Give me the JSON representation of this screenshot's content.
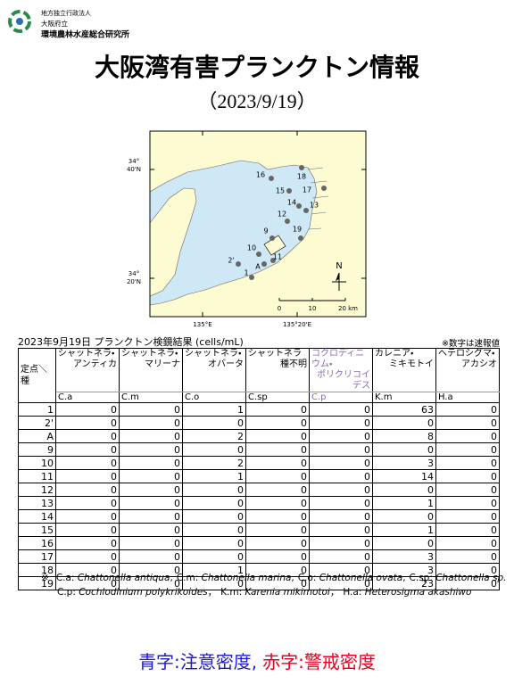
{
  "header": {
    "org_lines": [
      "地方独立行政法人",
      "大阪府立",
      "環境農林水産総合研究所"
    ],
    "title": "大阪湾有害プランクトン情報",
    "date": "（2023/9/19）"
  },
  "map": {
    "lat_labels": [
      {
        "deg": "34°",
        "min": "40'N"
      },
      {
        "deg": "34°",
        "min": "20'N"
      }
    ],
    "lon_labels": [
      "135°E",
      "135°20'E"
    ],
    "stations": [
      "16",
      "18",
      "15",
      "17",
      "14",
      "13",
      "12",
      "9",
      "19",
      "10",
      "11",
      "A",
      "2'",
      "1"
    ],
    "scale": [
      "0",
      "10",
      "20 km"
    ],
    "north": "N"
  },
  "table": {
    "caption": "2023年9月19日 プランクトン検鏡結果",
    "unit": "(cells/mL)",
    "note": "※数字は速報値",
    "corner": "定点＼種",
    "columns": [
      {
        "name": [
          "シャットネラ・",
          "アンティカ"
        ],
        "code": "C.a"
      },
      {
        "name": [
          "シャットネラ・",
          "マリーナ"
        ],
        "code": "C.m"
      },
      {
        "name": [
          "シャットネラ・",
          "オバータ"
        ],
        "code": "C.o"
      },
      {
        "name": [
          "シャットネラ",
          "種不明"
        ],
        "code": "C.sp"
      },
      {
        "name": [
          "コクロディニウム・",
          "ポリクリコイデス"
        ],
        "code": "C.p",
        "color": "#8a6aa8"
      },
      {
        "name": [
          "カレニア・",
          "ミキモトイ"
        ],
        "code": "K.m"
      },
      {
        "name": [
          "ヘテロシグマ・",
          "アカシオ"
        ],
        "code": "H.a"
      }
    ],
    "rows": [
      {
        "station": "1",
        "values": [
          0,
          0,
          1,
          0,
          0,
          63,
          0
        ]
      },
      {
        "station": "2'",
        "values": [
          0,
          0,
          0,
          0,
          0,
          0,
          0
        ]
      },
      {
        "station": "A",
        "values": [
          0,
          0,
          2,
          0,
          0,
          8,
          0
        ]
      },
      {
        "station": "9",
        "values": [
          0,
          0,
          0,
          0,
          0,
          0,
          0
        ]
      },
      {
        "station": "10",
        "values": [
          0,
          0,
          2,
          0,
          0,
          3,
          0
        ]
      },
      {
        "station": "11",
        "values": [
          0,
          0,
          1,
          0,
          0,
          14,
          0
        ]
      },
      {
        "station": "12",
        "values": [
          0,
          0,
          0,
          0,
          0,
          0,
          0
        ]
      },
      {
        "station": "13",
        "values": [
          0,
          0,
          0,
          0,
          0,
          1,
          0
        ]
      },
      {
        "station": "14",
        "values": [
          0,
          0,
          0,
          0,
          0,
          0,
          0
        ]
      },
      {
        "station": "15",
        "values": [
          0,
          0,
          0,
          0,
          0,
          1,
          0
        ]
      },
      {
        "station": "16",
        "values": [
          0,
          0,
          0,
          0,
          0,
          0,
          0
        ]
      },
      {
        "station": "17",
        "values": [
          0,
          0,
          0,
          0,
          0,
          3,
          0
        ]
      },
      {
        "station": "18",
        "values": [
          0,
          0,
          1,
          0,
          0,
          3,
          0
        ]
      },
      {
        "station": "19",
        "values": [
          0,
          0,
          0,
          0,
          0,
          23,
          0
        ]
      }
    ]
  },
  "footnote": {
    "mark": "※",
    "lines": [
      [
        {
          "code": "C.a:",
          "name": "Chattonella antiqua",
          "sep": ","
        },
        {
          "code": "C.m:",
          "name": "Chattonella marina",
          "sep": ","
        },
        {
          "code": "C.o:",
          "name": "Chattonella ovata",
          "sep": ","
        },
        {
          "code": "C.sp:",
          "name": "Chattonella sp."
        }
      ],
      [
        {
          "code": "C.p:",
          "name": "Cochlodinium polykrikoides",
          "sep": "，"
        },
        {
          "code": "K.m:",
          "name": "Karenia mikimotoi",
          "sep": "，"
        },
        {
          "code": "H.a:",
          "name": "Heterosigma akashiwo"
        }
      ]
    ]
  },
  "legend": [
    {
      "text": "青字:注意密度,",
      "color": "#1c1cc8"
    },
    {
      "text": "赤字:警戒密度",
      "color": "#e8001c"
    }
  ]
}
